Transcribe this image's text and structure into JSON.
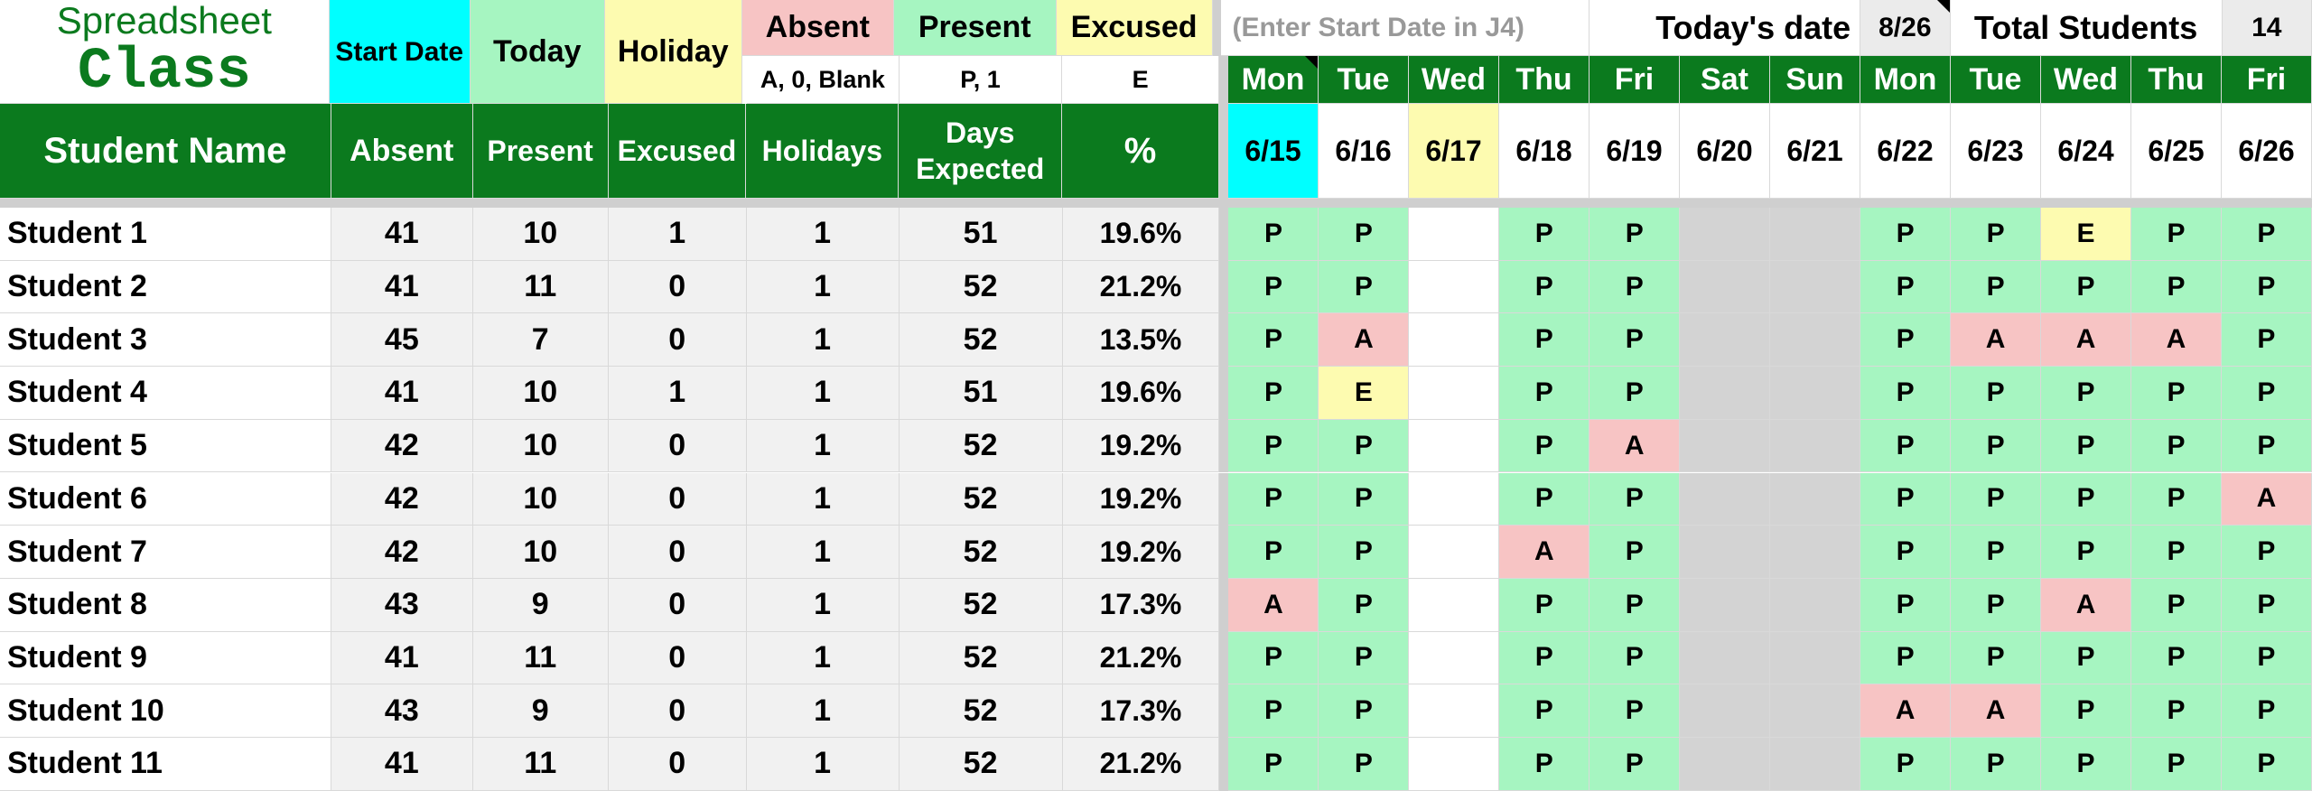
{
  "brand": {
    "line1": "Spreadsheet",
    "line2": "Class"
  },
  "legend": {
    "start_date": "Start Date",
    "today": "Today",
    "holiday": "Holiday",
    "absent": "Absent",
    "absent_codes": "A, 0, Blank",
    "present": "Present",
    "present_codes": "P, 1",
    "excused": "Excused",
    "excused_codes": "E"
  },
  "top_info": {
    "hint": "(Enter Start Date in J4)",
    "todays_date_label": "Today's date",
    "todays_date_value": "8/26",
    "total_students_label": "Total Students",
    "total_students_value": "14"
  },
  "summary_headers": {
    "student_name": "Student Name",
    "absent": "Absent",
    "present": "Present",
    "excused": "Excused",
    "holidays": "Holidays",
    "days_expected_1": "Days",
    "days_expected_2": "Expected",
    "percent": "%"
  },
  "days": [
    {
      "dow": "Mon",
      "date": "6/15"
    },
    {
      "dow": "Tue",
      "date": "6/16"
    },
    {
      "dow": "Wed",
      "date": "6/17"
    },
    {
      "dow": "Thu",
      "date": "6/18"
    },
    {
      "dow": "Fri",
      "date": "6/19"
    },
    {
      "dow": "Sat",
      "date": "6/20"
    },
    {
      "dow": "Sun",
      "date": "6/21"
    },
    {
      "dow": "Mon",
      "date": "6/22"
    },
    {
      "dow": "Tue",
      "date": "6/23"
    },
    {
      "dow": "Wed",
      "date": "6/24"
    },
    {
      "dow": "Thu",
      "date": "6/25"
    },
    {
      "dow": "Fri",
      "date": "6/26"
    }
  ],
  "students": [
    {
      "name": "Student 1",
      "absent": "41",
      "present": "10",
      "excused": "1",
      "holidays": "1",
      "expected": "51",
      "pct": "19.6%",
      "marks": [
        "P",
        "P",
        "",
        "P",
        "P",
        "",
        "",
        "P",
        "P",
        "E",
        "P",
        "P"
      ]
    },
    {
      "name": "Student 2",
      "absent": "41",
      "present": "11",
      "excused": "0",
      "holidays": "1",
      "expected": "52",
      "pct": "21.2%",
      "marks": [
        "P",
        "P",
        "",
        "P",
        "P",
        "",
        "",
        "P",
        "P",
        "P",
        "P",
        "P"
      ]
    },
    {
      "name": "Student 3",
      "absent": "45",
      "present": "7",
      "excused": "0",
      "holidays": "1",
      "expected": "52",
      "pct": "13.5%",
      "marks": [
        "P",
        "A",
        "",
        "P",
        "P",
        "",
        "",
        "P",
        "A",
        "A",
        "A",
        "P"
      ]
    },
    {
      "name": "Student 4",
      "absent": "41",
      "present": "10",
      "excused": "1",
      "holidays": "1",
      "expected": "51",
      "pct": "19.6%",
      "marks": [
        "P",
        "E",
        "",
        "P",
        "P",
        "",
        "",
        "P",
        "P",
        "P",
        "P",
        "P"
      ]
    },
    {
      "name": "Student 5",
      "absent": "42",
      "present": "10",
      "excused": "0",
      "holidays": "1",
      "expected": "52",
      "pct": "19.2%",
      "marks": [
        "P",
        "P",
        "",
        "P",
        "A",
        "",
        "",
        "P",
        "P",
        "P",
        "P",
        "P"
      ]
    },
    {
      "name": "Student 6",
      "absent": "42",
      "present": "10",
      "excused": "0",
      "holidays": "1",
      "expected": "52",
      "pct": "19.2%",
      "marks": [
        "P",
        "P",
        "",
        "P",
        "P",
        "",
        "",
        "P",
        "P",
        "P",
        "P",
        "A"
      ]
    },
    {
      "name": "Student 7",
      "absent": "42",
      "present": "10",
      "excused": "0",
      "holidays": "1",
      "expected": "52",
      "pct": "19.2%",
      "marks": [
        "P",
        "P",
        "",
        "A",
        "P",
        "",
        "",
        "P",
        "P",
        "P",
        "P",
        "P"
      ]
    },
    {
      "name": "Student 8",
      "absent": "43",
      "present": "9",
      "excused": "0",
      "holidays": "1",
      "expected": "52",
      "pct": "17.3%",
      "marks": [
        "A",
        "P",
        "",
        "P",
        "P",
        "",
        "",
        "P",
        "P",
        "A",
        "P",
        "P"
      ]
    },
    {
      "name": "Student 9",
      "absent": "41",
      "present": "11",
      "excused": "0",
      "holidays": "1",
      "expected": "52",
      "pct": "21.2%",
      "marks": [
        "P",
        "P",
        "",
        "P",
        "P",
        "",
        "",
        "P",
        "P",
        "P",
        "P",
        "P"
      ]
    },
    {
      "name": "Student 10",
      "absent": "43",
      "present": "9",
      "excused": "0",
      "holidays": "1",
      "expected": "52",
      "pct": "17.3%",
      "marks": [
        "P",
        "P",
        "",
        "P",
        "P",
        "",
        "",
        "A",
        "A",
        "P",
        "P",
        "P"
      ]
    },
    {
      "name": "Student 11",
      "absent": "41",
      "present": "11",
      "excused": "0",
      "holidays": "1",
      "expected": "52",
      "pct": "21.2%",
      "marks": [
        "P",
        "P",
        "",
        "P",
        "P",
        "",
        "",
        "P",
        "P",
        "P",
        "P",
        "P"
      ]
    }
  ],
  "colors": {
    "header_green": "#0b7a1e",
    "present": "#a6f5c1",
    "absent": "#f7c4c4",
    "excused": "#fdfbb0",
    "holiday": "#fdfbb0",
    "start_date": "#00ffff",
    "weekend": "#d3d3d3"
  }
}
